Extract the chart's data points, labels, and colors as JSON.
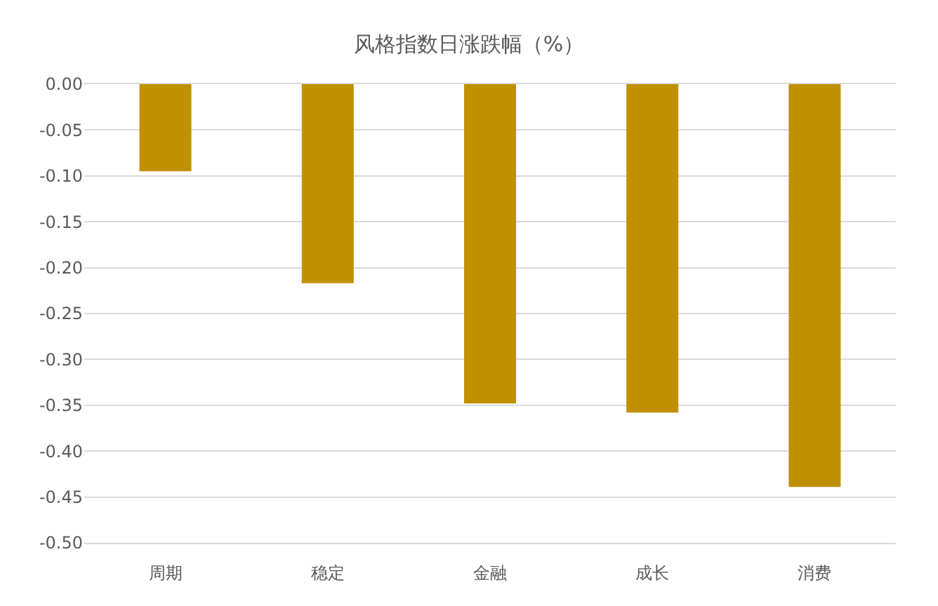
{
  "chart_data": {
    "type": "bar",
    "title": "风格指数日涨跌幅（%）",
    "categories": [
      "周期",
      "稳定",
      "金融",
      "成长",
      "消费"
    ],
    "values": [
      -0.095,
      -0.217,
      -0.348,
      -0.358,
      -0.439
    ],
    "color": "#bf9000",
    "ylim": [
      -0.5,
      0
    ],
    "yticks": [
      {
        "value": 0,
        "label": "0.00"
      },
      {
        "value": -0.05,
        "label": "-0.05"
      },
      {
        "value": -0.1,
        "label": "-0.10"
      },
      {
        "value": -0.15,
        "label": "-0.15"
      },
      {
        "value": -0.2,
        "label": "-0.20"
      },
      {
        "value": -0.25,
        "label": "-0.25"
      },
      {
        "value": -0.3,
        "label": "-0.30"
      },
      {
        "value": -0.35,
        "label": "-0.35"
      },
      {
        "value": -0.4,
        "label": "-0.40"
      },
      {
        "value": -0.45,
        "label": "-0.45"
      },
      {
        "value": -0.5,
        "label": "-0.50"
      }
    ],
    "grid": "y"
  }
}
